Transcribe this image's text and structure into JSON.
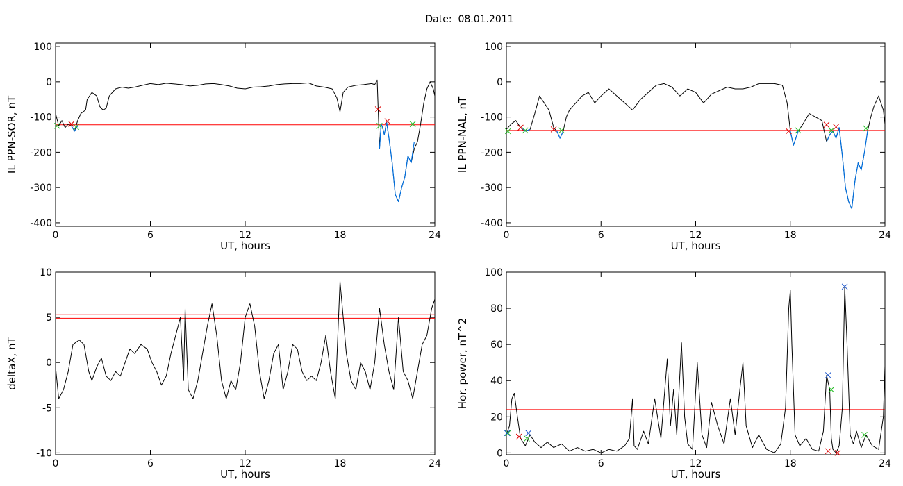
{
  "page": {
    "title": "Date:  08.01.2011"
  },
  "colors": {
    "trace": "#000000",
    "threshold": "#ff0000",
    "highlight": "#0070e0",
    "start_marker": "#22bb22",
    "end_marker": "#dd0000",
    "peak_marker": "#1a55cc"
  },
  "chart_data": [
    {
      "type": "line",
      "title": "",
      "xlabel": "UT, hours",
      "ylabel": "IL PPN-SOR, nT",
      "xlim": [
        0,
        24
      ],
      "ylim": [
        -410,
        110
      ],
      "x_ticks": [
        0,
        6,
        12,
        18,
        24
      ],
      "y_ticks": [
        100,
        0,
        -100,
        -200,
        -300,
        -400
      ],
      "grid": false,
      "threshold": [
        -122
      ],
      "series": [
        {
          "x": [
            0,
            0.2,
            0.4,
            0.6,
            0.8,
            1.0,
            1.2,
            1.4,
            1.6,
            1.9,
            2.0,
            2.3,
            2.6,
            2.8,
            3.0,
            3.2,
            3.4,
            3.8,
            4.2,
            4.6,
            5.0,
            5.5,
            6.0,
            6.5,
            7.0,
            7.5,
            8.0,
            8.5,
            9.0,
            9.5,
            10.0,
            10.5,
            11.0,
            11.5,
            12.0,
            12.5,
            13.0,
            13.5,
            14.0,
            14.5,
            15.0,
            15.5,
            16.0,
            16.5,
            17.0,
            17.5,
            17.8,
            18.0,
            18.2,
            18.5,
            19.0,
            19.5,
            20.0,
            20.2,
            20.35,
            20.5,
            20.6,
            20.7,
            20.8,
            20.95,
            21.1,
            21.3,
            21.5,
            21.7,
            21.9,
            22.1,
            22.3,
            22.5,
            22.7,
            22.9,
            23.1,
            23.3,
            23.5,
            23.7,
            23.9,
            24.0
          ],
          "y": [
            -90,
            -125,
            -110,
            -130,
            -120,
            -125,
            -140,
            -110,
            -90,
            -80,
            -50,
            -30,
            -40,
            -70,
            -80,
            -75,
            -40,
            -20,
            -15,
            -18,
            -15,
            -10,
            -5,
            -8,
            -4,
            -6,
            -8,
            -12,
            -10,
            -6,
            -5,
            -8,
            -12,
            -18,
            -20,
            -15,
            -14,
            -12,
            -8,
            -6,
            -5,
            -5,
            -3,
            -12,
            -15,
            -20,
            -45,
            -85,
            -30,
            -15,
            -10,
            -8,
            -5,
            -8,
            5,
            -190,
            -120,
            -130,
            -150,
            -115,
            -160,
            -230,
            -320,
            -340,
            -300,
            -270,
            -210,
            -230,
            -190,
            -170,
            -120,
            -60,
            -20,
            0,
            -20,
            -40
          ]
        }
      ],
      "highlights": [
        {
          "x": [
            1.0,
            1.2,
            1.4
          ],
          "y": [
            -125,
            -140,
            -125
          ]
        },
        {
          "x": [
            20.5,
            20.6,
            20.7,
            20.8,
            20.95,
            21.1,
            21.3,
            21.5,
            21.7,
            21.9,
            22.1,
            22.3,
            22.5,
            22.7
          ],
          "y": [
            -190,
            -120,
            -130,
            -150,
            -115,
            -160,
            -230,
            -320,
            -340,
            -300,
            -270,
            -210,
            -230,
            -170
          ]
        }
      ],
      "markers": {
        "start": [
          [
            0.1,
            -125
          ],
          [
            1.3,
            -128
          ],
          [
            20.5,
            -125
          ],
          [
            22.6,
            -120
          ]
        ],
        "end": [
          [
            1.0,
            -120
          ],
          [
            20.4,
            -78
          ],
          [
            21.0,
            -112
          ]
        ]
      }
    },
    {
      "type": "line",
      "title": "",
      "xlabel": "UT, hours",
      "ylabel": "IL PPN-NAL, nT",
      "xlim": [
        0,
        24
      ],
      "ylim": [
        -410,
        110
      ],
      "x_ticks": [
        0,
        6,
        12,
        18,
        24
      ],
      "y_ticks": [
        100,
        0,
        -100,
        -200,
        -300,
        -400
      ],
      "grid": false,
      "threshold": [
        -138
      ],
      "series": [
        {
          "x": [
            0,
            0.3,
            0.6,
            0.9,
            1.2,
            1.5,
            1.8,
            2.1,
            2.4,
            2.7,
            3.0,
            3.2,
            3.4,
            3.6,
            3.8,
            4.0,
            4.4,
            4.8,
            5.2,
            5.6,
            6.0,
            6.5,
            7.0,
            7.5,
            8.0,
            8.5,
            9.0,
            9.5,
            10.0,
            10.5,
            11.0,
            11.5,
            12.0,
            12.5,
            13.0,
            13.5,
            14.0,
            14.5,
            15.0,
            15.5,
            16.0,
            16.5,
            17.0,
            17.5,
            17.8,
            18.0,
            18.2,
            18.5,
            18.8,
            19.2,
            19.6,
            20.0,
            20.3,
            20.5,
            20.7,
            20.9,
            21.1,
            21.3,
            21.5,
            21.7,
            21.9,
            22.1,
            22.3,
            22.5,
            22.7,
            22.9,
            23.1,
            23.3,
            23.6,
            23.9,
            24.0
          ],
          "y": [
            -135,
            -120,
            -110,
            -130,
            -140,
            -135,
            -90,
            -40,
            -60,
            -80,
            -130,
            -140,
            -160,
            -140,
            -100,
            -80,
            -60,
            -40,
            -30,
            -60,
            -40,
            -20,
            -40,
            -60,
            -80,
            -50,
            -30,
            -10,
            -5,
            -15,
            -40,
            -20,
            -30,
            -60,
            -35,
            -25,
            -15,
            -20,
            -20,
            -15,
            -5,
            -5,
            -5,
            -10,
            -60,
            -140,
            -180,
            -140,
            -120,
            -90,
            -100,
            -110,
            -170,
            -150,
            -140,
            -160,
            -130,
            -210,
            -300,
            -340,
            -360,
            -280,
            -230,
            -250,
            -200,
            -140,
            -100,
            -70,
            -40,
            -80,
            -120
          ]
        }
      ],
      "highlights": [
        {
          "x": [
            0.9,
            1.2,
            1.5
          ],
          "y": [
            -130,
            -140,
            -135
          ]
        },
        {
          "x": [
            3.2,
            3.4,
            3.6
          ],
          "y": [
            -140,
            -160,
            -140
          ]
        },
        {
          "x": [
            18.0,
            18.2,
            18.5
          ],
          "y": [
            -140,
            -180,
            -140
          ]
        },
        {
          "x": [
            20.3,
            20.5,
            20.7,
            20.9,
            21.1,
            21.3,
            21.5,
            21.7,
            21.9,
            22.1,
            22.3,
            22.5,
            22.7,
            22.9
          ],
          "y": [
            -170,
            -150,
            -140,
            -160,
            -130,
            -210,
            -300,
            -340,
            -360,
            -280,
            -230,
            -250,
            -200,
            -140
          ]
        }
      ],
      "markers": {
        "start": [
          [
            0.1,
            -140
          ],
          [
            1.2,
            -138
          ],
          [
            3.5,
            -138
          ],
          [
            18.5,
            -138
          ],
          [
            20.6,
            -138
          ],
          [
            22.8,
            -132
          ]
        ],
        "end": [
          [
            0.9,
            -130
          ],
          [
            3.0,
            -135
          ],
          [
            17.9,
            -140
          ],
          [
            20.3,
            -122
          ],
          [
            20.9,
            -128
          ]
        ]
      }
    },
    {
      "type": "line",
      "title": "",
      "xlabel": "UT, hours",
      "ylabel": "deltaX, nT",
      "xlim": [
        0,
        24
      ],
      "ylim": [
        -10.2,
        10
      ],
      "x_ticks": [
        0,
        6,
        12,
        18,
        24
      ],
      "y_ticks": [
        10,
        5,
        0,
        -5,
        -10
      ],
      "grid": false,
      "threshold": [
        5.3,
        4.9
      ],
      "series": [
        {
          "x": [
            0,
            0.2,
            0.5,
            0.8,
            1.1,
            1.5,
            1.8,
            2.1,
            2.3,
            2.6,
            2.9,
            3.2,
            3.5,
            3.8,
            4.1,
            4.4,
            4.7,
            5.0,
            5.4,
            5.8,
            6.1,
            6.4,
            6.7,
            7.0,
            7.3,
            7.6,
            7.9,
            8.1,
            8.2,
            8.4,
            8.7,
            9.0,
            9.3,
            9.6,
            9.9,
            10.2,
            10.5,
            10.8,
            11.1,
            11.4,
            11.7,
            12.0,
            12.3,
            12.6,
            12.9,
            13.2,
            13.5,
            13.8,
            14.1,
            14.4,
            14.7,
            15.0,
            15.3,
            15.6,
            15.9,
            16.2,
            16.5,
            16.8,
            17.1,
            17.4,
            17.7,
            18.0,
            18.2,
            18.4,
            18.7,
            19.0,
            19.3,
            19.6,
            19.9,
            20.2,
            20.5,
            20.8,
            21.1,
            21.4,
            21.7,
            22.0,
            22.3,
            22.6,
            22.9,
            23.2,
            23.5,
            23.8,
            24.0
          ],
          "y": [
            -0.5,
            -4,
            -3,
            -1,
            2,
            2.5,
            2,
            -1,
            -2,
            -0.5,
            0.5,
            -1.5,
            -2,
            -1,
            -1.5,
            0,
            1.5,
            1,
            2,
            1.5,
            0,
            -1,
            -2.5,
            -1.5,
            1,
            3,
            5,
            -2,
            6,
            -3,
            -4,
            -2,
            1,
            4,
            6.5,
            3,
            -2,
            -4,
            -2,
            -3,
            0,
            5,
            6.5,
            4,
            -1,
            -4,
            -2,
            1,
            2,
            -3,
            -1,
            2,
            1.5,
            -1,
            -2,
            -1.5,
            -2,
            0,
            3,
            -1,
            -4,
            9,
            5,
            1,
            -2,
            -3,
            0,
            -1,
            -3,
            0,
            6,
            2,
            -1,
            -3,
            5,
            -1,
            -2,
            -4,
            -1,
            2,
            3,
            6,
            7
          ]
        }
      ],
      "highlights": [],
      "markers": {
        "start": [],
        "end": []
      }
    },
    {
      "type": "line",
      "title": "",
      "xlabel": "UT, hours",
      "ylabel": "Hor. power, nT^2",
      "xlim": [
        0,
        24
      ],
      "ylim": [
        -1,
        100
      ],
      "x_ticks": [
        0,
        6,
        12,
        18,
        24
      ],
      "y_ticks": [
        100,
        80,
        60,
        40,
        20,
        0
      ],
      "grid": false,
      "threshold": [
        24
      ],
      "series": [
        {
          "x": [
            0,
            0.2,
            0.35,
            0.5,
            0.7,
            0.9,
            1.2,
            1.5,
            1.8,
            2.2,
            2.6,
            3.0,
            3.5,
            4.0,
            4.5,
            5.0,
            5.5,
            6.0,
            6.5,
            7.0,
            7.5,
            7.8,
            8.0,
            8.1,
            8.3,
            8.7,
            9.0,
            9.4,
            9.8,
            10.2,
            10.4,
            10.6,
            10.8,
            11.1,
            11.3,
            11.5,
            11.8,
            12.1,
            12.4,
            12.7,
            13.0,
            13.4,
            13.8,
            14.2,
            14.5,
            14.8,
            15.0,
            15.2,
            15.6,
            16.0,
            16.5,
            17.0,
            17.4,
            17.7,
            17.9,
            18.0,
            18.1,
            18.3,
            18.6,
            19.0,
            19.4,
            19.8,
            20.1,
            20.3,
            20.5,
            20.6,
            20.7,
            20.9,
            21.1,
            21.3,
            21.45,
            21.6,
            21.8,
            22.0,
            22.2,
            22.5,
            22.8,
            23.2,
            23.6,
            23.9,
            24.0
          ],
          "y": [
            10,
            15,
            30,
            33,
            20,
            8,
            4,
            10,
            6,
            3,
            6,
            3,
            5,
            1,
            3,
            1,
            2,
            0,
            2,
            1,
            4,
            8,
            30,
            4,
            2,
            12,
            5,
            30,
            8,
            52,
            15,
            35,
            10,
            61,
            20,
            5,
            2,
            50,
            10,
            3,
            28,
            15,
            5,
            30,
            10,
            35,
            50,
            15,
            3,
            10,
            2,
            0,
            5,
            25,
            80,
            90,
            60,
            10,
            4,
            8,
            2,
            1,
            12,
            43,
            35,
            8,
            2,
            0,
            4,
            25,
            92,
            60,
            10,
            5,
            12,
            3,
            10,
            4,
            2,
            20,
            48
          ]
        }
      ],
      "highlights": [],
      "markers": {
        "start": [
          [
            0.1,
            11
          ],
          [
            1.3,
            8
          ],
          [
            20.6,
            35
          ],
          [
            22.7,
            10
          ]
        ],
        "end": [
          [
            0.8,
            9
          ],
          [
            20.4,
            1
          ],
          [
            21.0,
            0
          ]
        ],
        "peak": [
          [
            0.05,
            11
          ],
          [
            1.4,
            11
          ],
          [
            20.4,
            43
          ],
          [
            21.45,
            92
          ]
        ]
      }
    }
  ]
}
